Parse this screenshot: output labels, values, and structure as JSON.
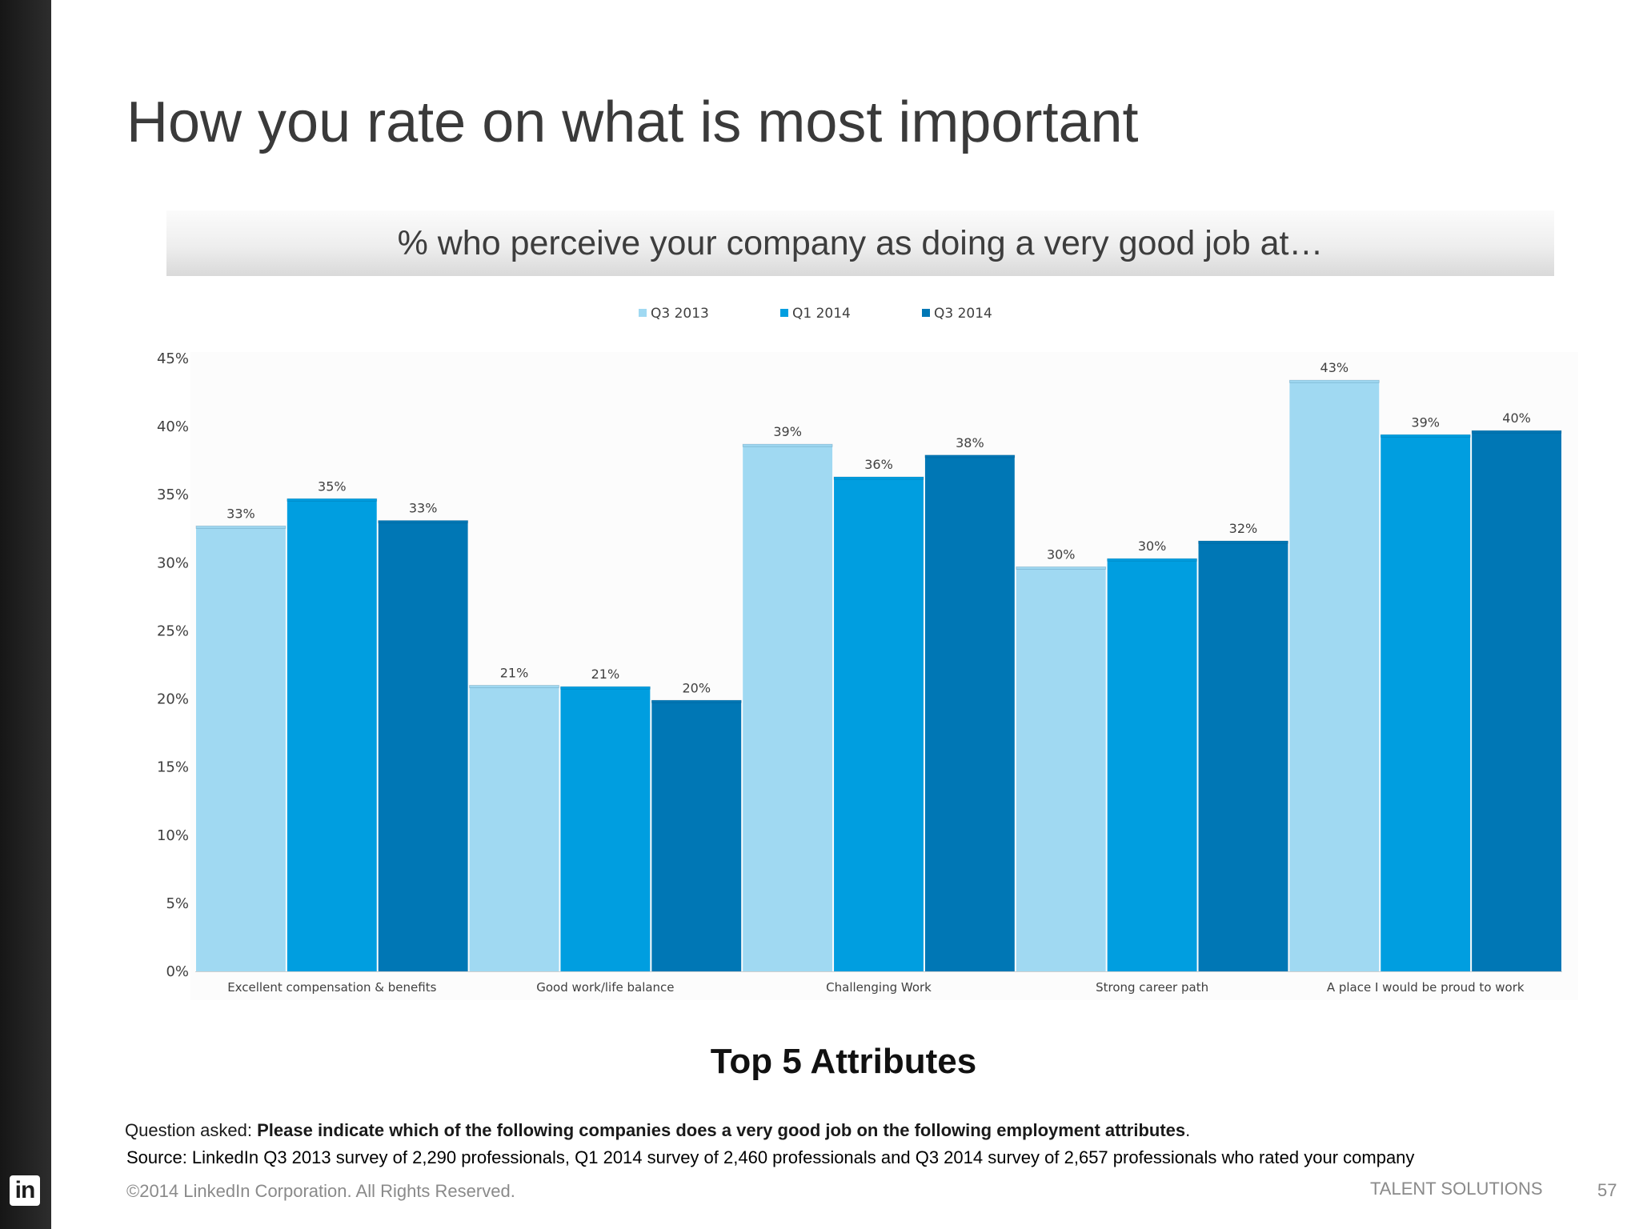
{
  "slide": {
    "title": "How you rate on what is most important",
    "subtitle": "% who perceive your company as doing a very good job at…",
    "caption": "Top 5 Attributes",
    "question_prefix": "Question asked: ",
    "question_bold": "Please indicate which of the following companies does a very good job on the following employment attributes",
    "question_suffix": ".",
    "source": "Source: LinkedIn Q3 2013 survey of 2,290 professionals, Q1 2014 survey of 2,460 professionals and Q3 2014 survey of 2,657 professionals who rated your company",
    "copyright": "©2014 LinkedIn Corporation. All Rights Reserved.",
    "brand": "TALENT SOLUTIONS",
    "page_number": "57",
    "logo_text": "in"
  },
  "chart_data": {
    "type": "bar",
    "categories": [
      "Excellent compensation & benefits",
      "Good work/life balance",
      "Challenging Work",
      "Strong career path",
      "A place I would be proud to work"
    ],
    "series": [
      {
        "name": "Q3 2013",
        "values": [
          32.7,
          21.0,
          38.7,
          29.7,
          43.4
        ],
        "labels": [
          "33%",
          "21%",
          "39%",
          "30%",
          "43%"
        ],
        "color": "#a0d9f2"
      },
      {
        "name": "Q1 2014",
        "values": [
          34.7,
          20.9,
          36.3,
          30.3,
          39.4
        ],
        "labels": [
          "35%",
          "21%",
          "36%",
          "30%",
          "39%"
        ],
        "color": "#009ee0"
      },
      {
        "name": "Q3 2014",
        "values": [
          33.1,
          19.9,
          37.9,
          31.6,
          39.7
        ],
        "labels": [
          "33%",
          "20%",
          "38%",
          "32%",
          "40%"
        ],
        "color": "#0077b5"
      }
    ],
    "yticks": [
      "0%",
      "5%",
      "10%",
      "15%",
      "20%",
      "25%",
      "30%",
      "35%",
      "40%",
      "45%"
    ],
    "ylim": [
      0,
      45
    ],
    "legend": "top",
    "grid": false
  }
}
